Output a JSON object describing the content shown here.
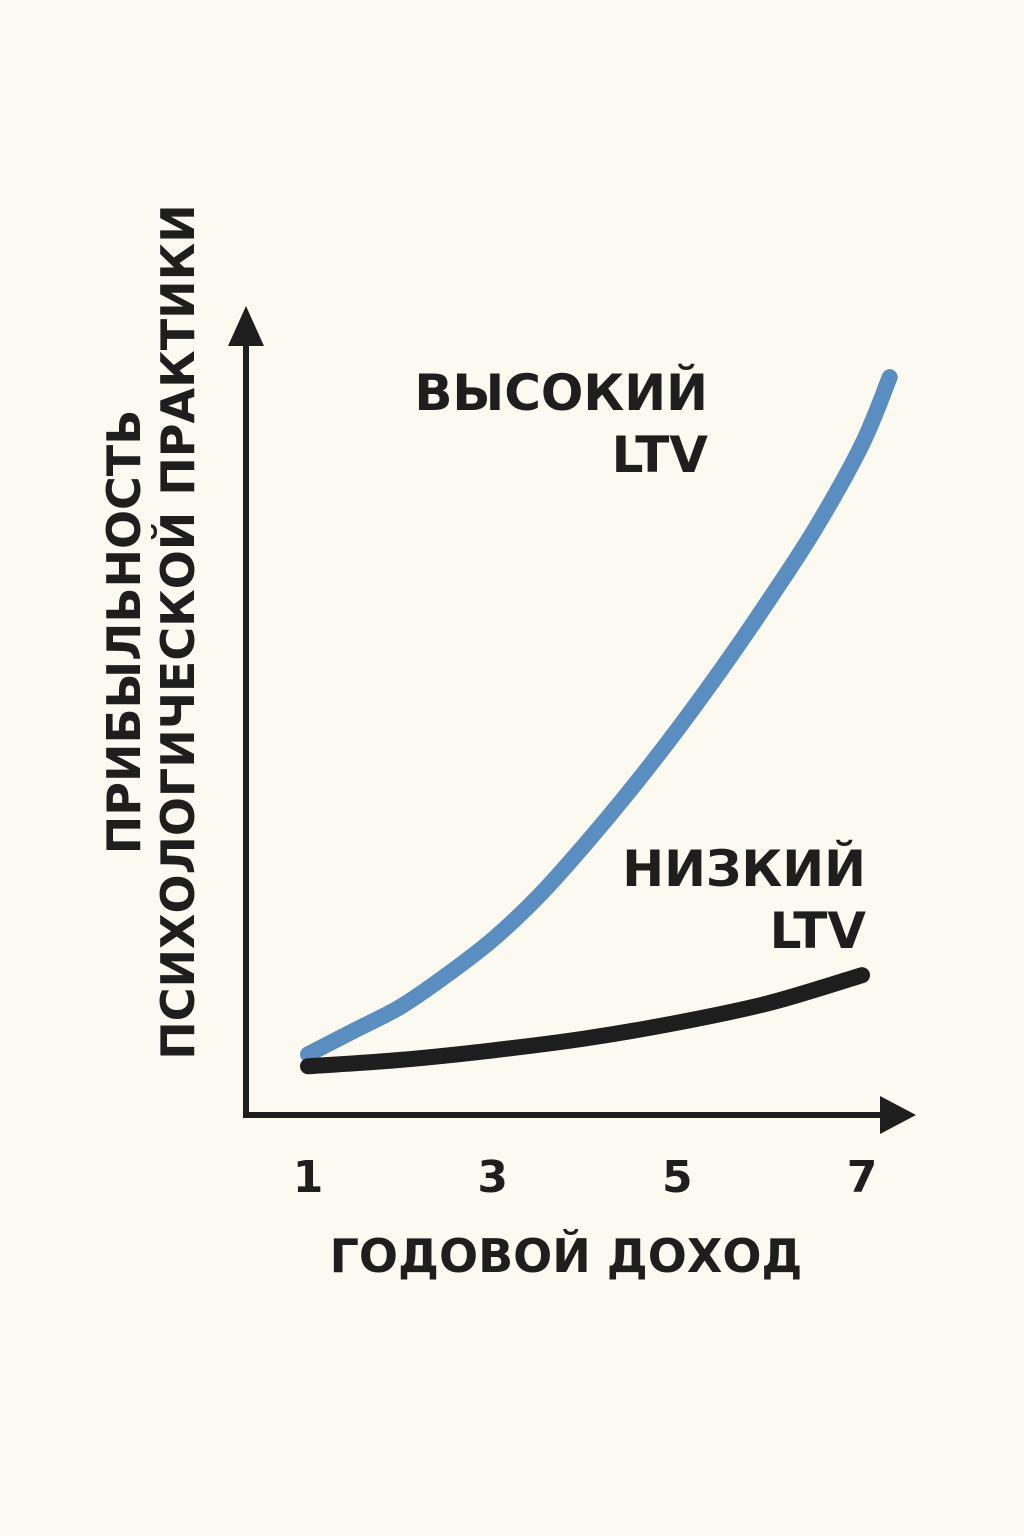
{
  "chart_data": {
    "type": "line",
    "xlabel": "ГОДОВОЙ ДОХОД",
    "ylabel_lines": [
      "ПРИБЫЛЬНОСТЬ",
      "ПСИХОЛОГИЧЕСКОЙ ПРАКТИКИ"
    ],
    "x_ticks": [
      "1",
      "3",
      "5",
      "7"
    ],
    "xlim": [
      1,
      7.3
    ],
    "ylim": [
      0,
      10
    ],
    "grid": false,
    "series": [
      {
        "label_lines": [
          "ВЫСОКИЙ",
          "LTV"
        ],
        "color": "#5a8dc0",
        "x": [
          1,
          1.5,
          2,
          2.5,
          3,
          3.5,
          4,
          4.5,
          5,
          5.5,
          6,
          6.5,
          7,
          7.3
        ],
        "y": [
          0.45,
          0.75,
          1.05,
          1.45,
          1.9,
          2.45,
          3.1,
          3.8,
          4.55,
          5.35,
          6.2,
          7.1,
          8.15,
          9.0
        ]
      },
      {
        "label_lines": [
          "НИЗКИЙ",
          "LTV"
        ],
        "color": "#1e1e1e",
        "x": [
          1,
          2,
          3,
          4,
          5,
          6,
          7
        ],
        "y": [
          0.3,
          0.38,
          0.5,
          0.65,
          0.85,
          1.1,
          1.45
        ]
      }
    ]
  }
}
